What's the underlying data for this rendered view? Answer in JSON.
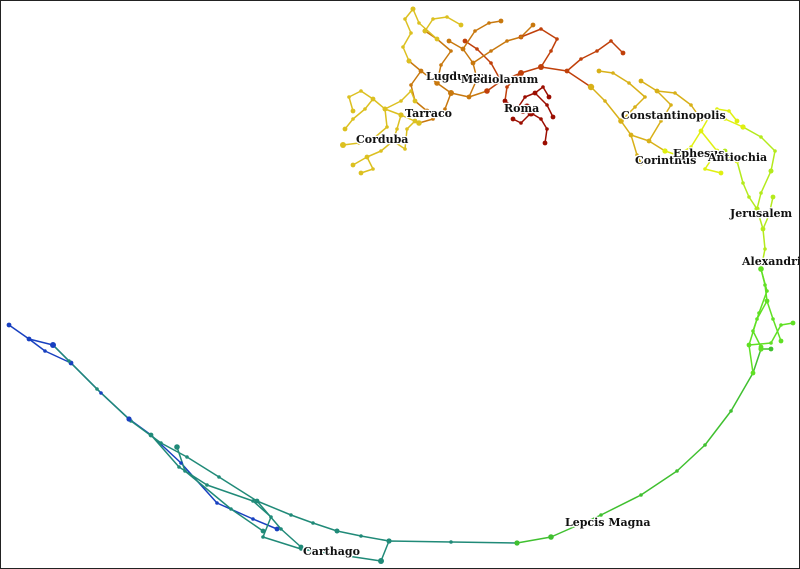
{
  "cities": [
    {
      "name": "Lugdunum"
    },
    {
      "name": "Mediolanum"
    },
    {
      "name": "Roma"
    },
    {
      "name": "Tarraco"
    },
    {
      "name": "Corduba"
    },
    {
      "name": "Constantinopolis"
    },
    {
      "name": "Corinthus"
    },
    {
      "name": "Ephesus"
    },
    {
      "name": "Antiochia"
    },
    {
      "name": "Jerusalem"
    },
    {
      "name": "Alexandria"
    },
    {
      "name": "Lepcis Magna"
    },
    {
      "name": "Carthago"
    }
  ],
  "colors": {
    "roma": "#9b0d00",
    "italia": "#c0400a",
    "gallia": "#c8780e",
    "hispania": "#dcc020",
    "graecia": "#d8b018",
    "asia": "#e0f010",
    "syria": "#b4ea1c",
    "aegyptus": "#60e024",
    "libya": "#40c030",
    "africa": "#208a78",
    "mauretania": "#1840c0"
  }
}
